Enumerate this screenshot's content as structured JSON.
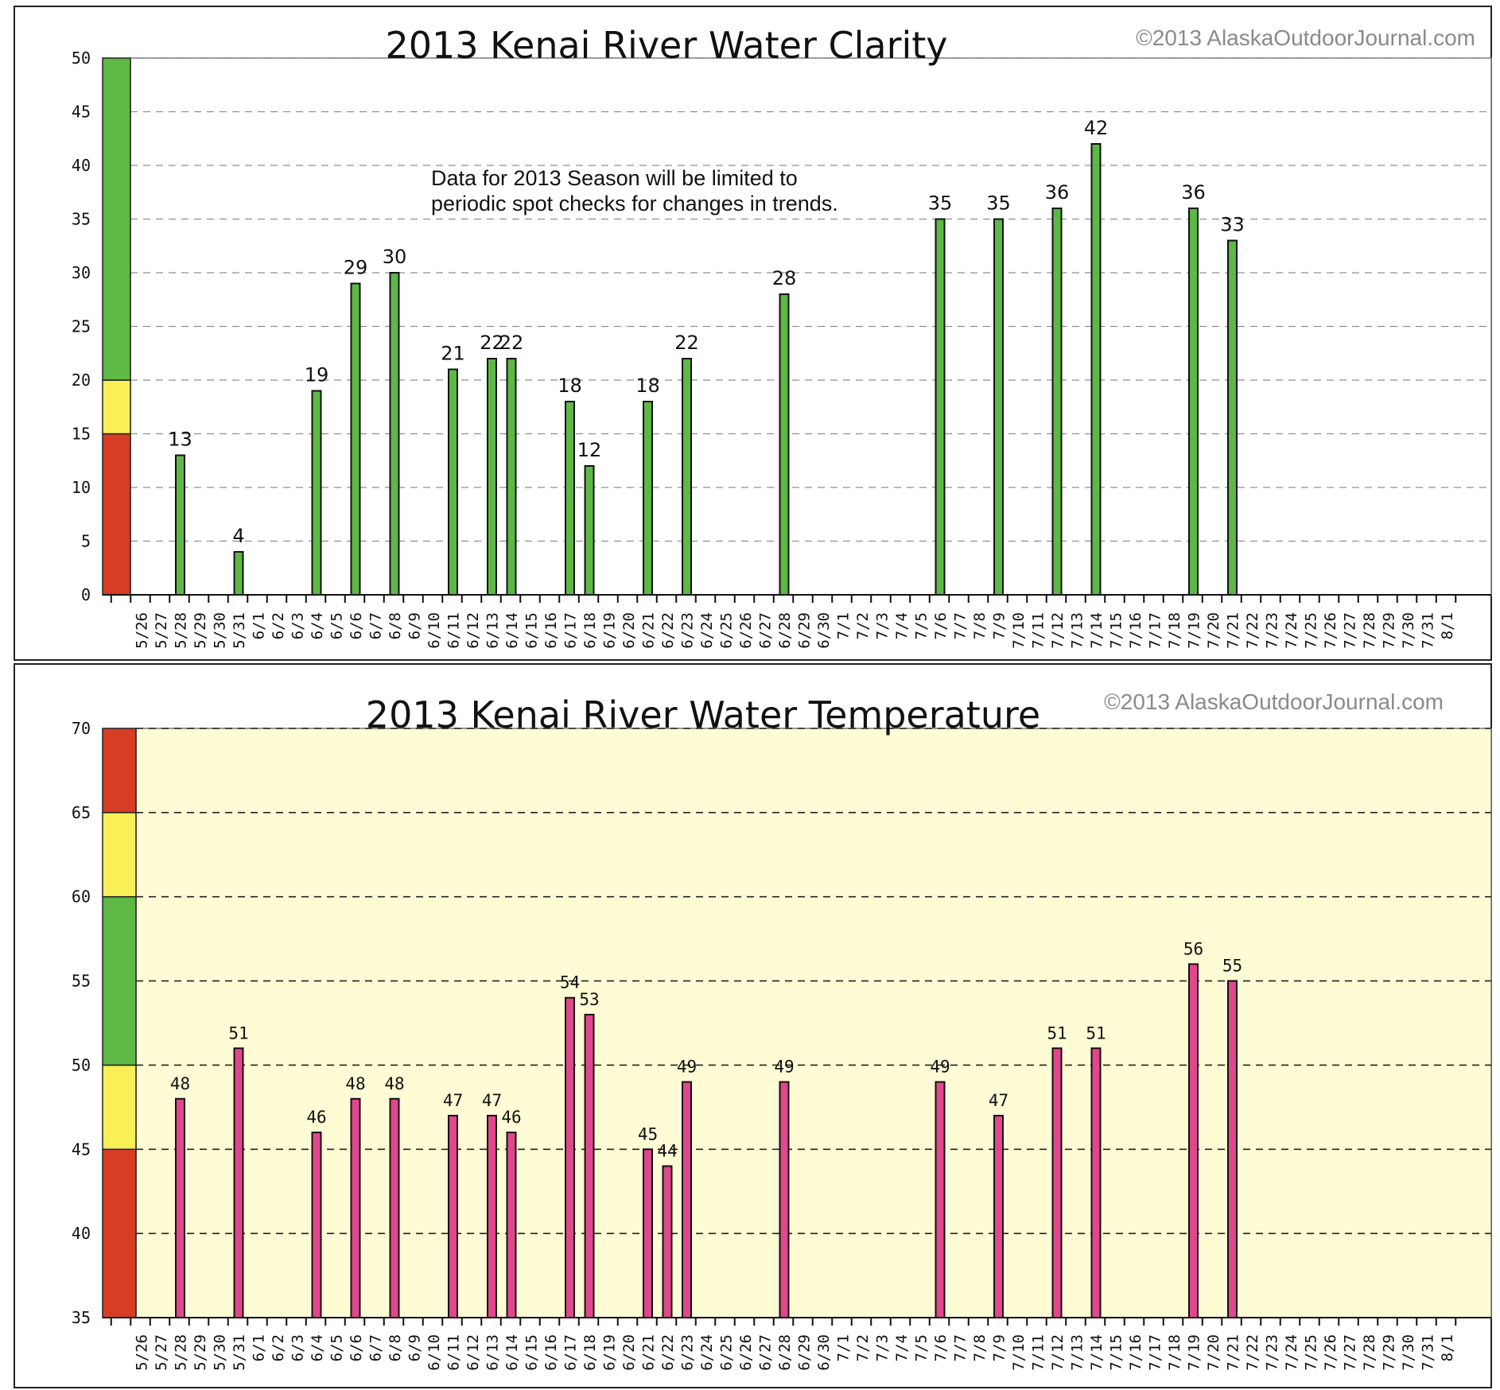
{
  "chart_data": [
    {
      "type": "bar",
      "title": "2013 Kenai River Water Clarity",
      "copyright": "©2013  AlaskaOutdoorJournal.com",
      "annotation": [
        "Data for 2013 Season will be limited to",
        "periodic spot checks for changes in trends."
      ],
      "ylim": [
        0,
        50
      ],
      "yticks": [
        0,
        5,
        10,
        15,
        20,
        25,
        30,
        35,
        40,
        45,
        50
      ],
      "grid": true,
      "background": "#ffffff",
      "bar_color": "#5db845",
      "scale_bands": [
        {
          "from": 0,
          "to": 15,
          "color": "#d63d24"
        },
        {
          "from": 15,
          "to": 20,
          "color": "#f9ef57"
        },
        {
          "from": 20,
          "to": 50,
          "color": "#5db845"
        }
      ],
      "categories": [
        "5/26",
        "5/27",
        "5/28",
        "5/29",
        "5/30",
        "5/31",
        "6/1",
        "6/2",
        "6/3",
        "6/4",
        "6/5",
        "6/6",
        "6/7",
        "6/8",
        "6/9",
        "6/10",
        "6/11",
        "6/12",
        "6/13",
        "6/14",
        "6/15",
        "6/16",
        "6/17",
        "6/18",
        "6/19",
        "6/20",
        "6/21",
        "6/22",
        "6/23",
        "6/24",
        "6/25",
        "6/26",
        "6/27",
        "6/28",
        "6/29",
        "6/30",
        "7/1",
        "7/2",
        "7/3",
        "7/4",
        "7/5",
        "7/6",
        "7/7",
        "7/8",
        "7/9",
        "7/10",
        "7/11",
        "7/12",
        "7/13",
        "7/14",
        "7/15",
        "7/16",
        "7/17",
        "7/18",
        "7/19",
        "7/20",
        "7/21",
        "7/22",
        "7/23",
        "7/24",
        "7/25",
        "7/26",
        "7/27",
        "7/28",
        "7/29",
        "7/30",
        "7/31",
        "8/1"
      ],
      "values": [
        null,
        null,
        13,
        null,
        null,
        4,
        null,
        null,
        null,
        19,
        null,
        29,
        null,
        30,
        null,
        null,
        21,
        null,
        22,
        22,
        null,
        null,
        18,
        12,
        null,
        null,
        18,
        null,
        22,
        null,
        null,
        null,
        null,
        28,
        null,
        null,
        null,
        null,
        null,
        null,
        null,
        35,
        null,
        null,
        35,
        null,
        null,
        36,
        null,
        42,
        null,
        null,
        null,
        null,
        36,
        null,
        33,
        null,
        null,
        null,
        null,
        null,
        null,
        null,
        null,
        null,
        null,
        null
      ]
    },
    {
      "type": "bar",
      "title": "2013 Kenai River Water Temperature",
      "copyright": "©2013  AlaskaOutdoorJournal.com",
      "ylim": [
        35,
        70
      ],
      "yticks": [
        35,
        40,
        45,
        50,
        55,
        60,
        65,
        70
      ],
      "grid": true,
      "background": "#fefbd5",
      "bar_color": "#e0478c",
      "scale_bands": [
        {
          "from": 35,
          "to": 45,
          "color": "#d63d24"
        },
        {
          "from": 45,
          "to": 50,
          "color": "#f9ef57"
        },
        {
          "from": 50,
          "to": 60,
          "color": "#5db845"
        },
        {
          "from": 60,
          "to": 65,
          "color": "#f9ef57"
        },
        {
          "from": 65,
          "to": 70,
          "color": "#d63d24"
        }
      ],
      "categories": [
        "5/26",
        "5/27",
        "5/28",
        "5/29",
        "5/30",
        "5/31",
        "6/1",
        "6/2",
        "6/3",
        "6/4",
        "6/5",
        "6/6",
        "6/7",
        "6/8",
        "6/9",
        "6/10",
        "6/11",
        "6/12",
        "6/13",
        "6/14",
        "6/15",
        "6/16",
        "6/17",
        "6/18",
        "6/19",
        "6/20",
        "6/21",
        "6/22",
        "6/23",
        "6/24",
        "6/25",
        "6/26",
        "6/27",
        "6/28",
        "6/29",
        "6/30",
        "7/1",
        "7/2",
        "7/3",
        "7/4",
        "7/5",
        "7/6",
        "7/7",
        "7/8",
        "7/9",
        "7/10",
        "7/11",
        "7/12",
        "7/13",
        "7/14",
        "7/15",
        "7/16",
        "7/17",
        "7/18",
        "7/19",
        "7/20",
        "7/21",
        "7/22",
        "7/23",
        "7/24",
        "7/25",
        "7/26",
        "7/27",
        "7/28",
        "7/29",
        "7/30",
        "7/31",
        "8/1"
      ],
      "values": [
        null,
        null,
        48,
        null,
        null,
        51,
        null,
        null,
        null,
        46,
        null,
        48,
        null,
        48,
        null,
        null,
        47,
        null,
        47,
        46,
        null,
        null,
        54,
        53,
        null,
        null,
        45,
        44,
        49,
        null,
        null,
        null,
        null,
        49,
        null,
        null,
        null,
        null,
        null,
        null,
        null,
        49,
        null,
        null,
        47,
        null,
        null,
        51,
        null,
        51,
        null,
        null,
        null,
        null,
        56,
        null,
        55,
        null,
        null,
        null,
        null,
        null,
        null,
        null,
        null,
        null,
        null,
        null
      ]
    }
  ]
}
